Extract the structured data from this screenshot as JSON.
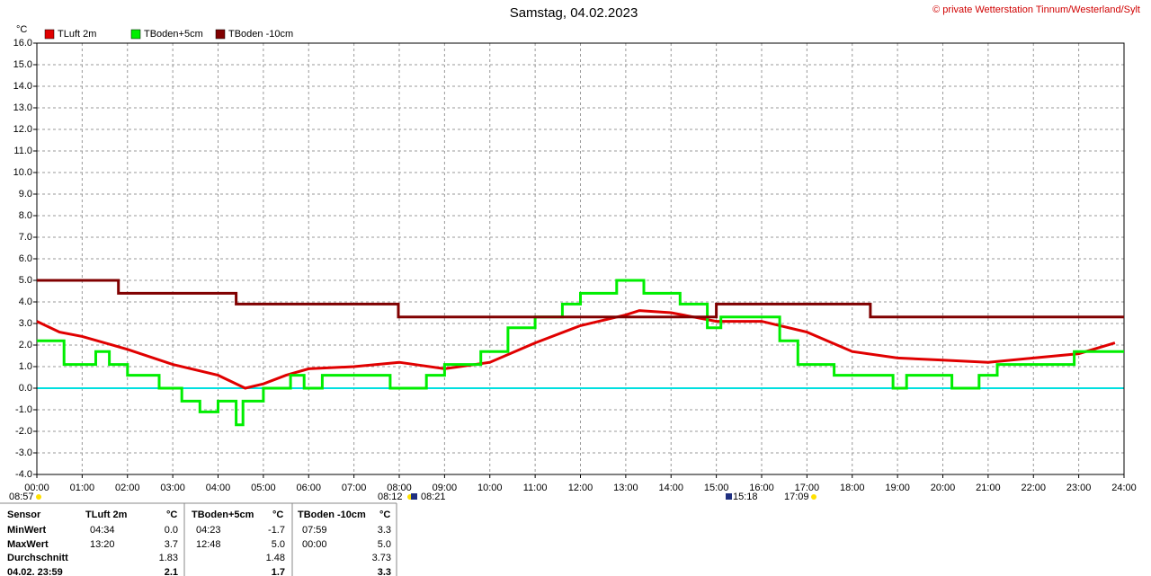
{
  "chart_data": {
    "type": "line",
    "title": "Samstag, 04.02.2023",
    "copyright": "© private Wetterstation Tinnum/Westerland/Sylt",
    "y_label": "°C",
    "xlim": [
      0,
      24
    ],
    "ylim": [
      -4,
      16
    ],
    "grid": true,
    "zero_line_color": "#00e0e0",
    "xticks": [
      {
        "value": 0,
        "label": "00:00"
      },
      {
        "value": 1,
        "label": "01:00"
      },
      {
        "value": 2,
        "label": "02:00"
      },
      {
        "value": 3,
        "label": "03:00"
      },
      {
        "value": 4,
        "label": "04:00"
      },
      {
        "value": 5,
        "label": "05:00"
      },
      {
        "value": 6,
        "label": "06:00"
      },
      {
        "value": 7,
        "label": "07:00"
      },
      {
        "value": 8,
        "label": "08:00"
      },
      {
        "value": 9,
        "label": "09:00"
      },
      {
        "value": 10,
        "label": "10:00"
      },
      {
        "value": 11,
        "label": "11:00"
      },
      {
        "value": 12,
        "label": "12:00"
      },
      {
        "value": 13,
        "label": "13:00"
      },
      {
        "value": 14,
        "label": "14:00"
      },
      {
        "value": 15,
        "label": "15:00"
      },
      {
        "value": 16,
        "label": "16:00"
      },
      {
        "value": 17,
        "label": "17:00"
      },
      {
        "value": 18,
        "label": "18:00"
      },
      {
        "value": 19,
        "label": "19:00"
      },
      {
        "value": 20,
        "label": "20:00"
      },
      {
        "value": 21,
        "label": "21:00"
      },
      {
        "value": 22,
        "label": "22:00"
      },
      {
        "value": 23,
        "label": "23:00"
      },
      {
        "value": 24,
        "label": "24:00"
      }
    ],
    "yticks": [
      {
        "value": -4,
        "label": "-4.0"
      },
      {
        "value": -3,
        "label": "-3.0"
      },
      {
        "value": -2,
        "label": "-2.0"
      },
      {
        "value": -1,
        "label": "-1.0"
      },
      {
        "value": 0,
        "label": "0.0"
      },
      {
        "value": 1,
        "label": "1.0"
      },
      {
        "value": 2,
        "label": "2.0"
      },
      {
        "value": 3,
        "label": "3.0"
      },
      {
        "value": 4,
        "label": "4.0"
      },
      {
        "value": 5,
        "label": "5.0"
      },
      {
        "value": 6,
        "label": "6.0"
      },
      {
        "value": 7,
        "label": "7.0"
      },
      {
        "value": 8,
        "label": "8.0"
      },
      {
        "value": 9,
        "label": "9.0"
      },
      {
        "value": 10,
        "label": "10.0"
      },
      {
        "value": 11,
        "label": "11.0"
      },
      {
        "value": 12,
        "label": "12.0"
      },
      {
        "value": 13,
        "label": "13.0"
      },
      {
        "value": 14,
        "label": "14.0"
      },
      {
        "value": 15,
        "label": "15.0"
      },
      {
        "value": 16,
        "label": "16.0"
      }
    ],
    "series": [
      {
        "name": "TLuft 2m",
        "color": "#e00000",
        "x": [
          0,
          0.5,
          1,
          2,
          3,
          4,
          4.6,
          5,
          5.5,
          6,
          7,
          8,
          9,
          10,
          11,
          12,
          13,
          13.3,
          14,
          15,
          16,
          17,
          18,
          19,
          20,
          21,
          22,
          23,
          23.8
        ],
        "values": [
          3.1,
          2.6,
          2.4,
          1.8,
          1.1,
          0.6,
          0.0,
          0.2,
          0.6,
          0.9,
          1.0,
          1.2,
          0.9,
          1.2,
          2.1,
          2.9,
          3.4,
          3.6,
          3.5,
          3.1,
          3.1,
          2.6,
          1.7,
          1.4,
          1.3,
          1.2,
          1.4,
          1.6,
          2.1
        ]
      },
      {
        "name": "TBoden+5cm",
        "color": "#00ee00",
        "x": [
          0,
          0.6,
          0.6,
          1.3,
          1.3,
          1.6,
          1.6,
          2.0,
          2.0,
          2.7,
          2.7,
          3.2,
          3.2,
          3.6,
          3.6,
          4.0,
          4.0,
          4.4,
          4.4,
          4.55,
          4.55,
          5.0,
          5.0,
          5.6,
          5.6,
          5.9,
          5.9,
          6.3,
          6.3,
          7.8,
          7.8,
          8.6,
          8.6,
          9.0,
          9.0,
          9.8,
          9.8,
          10.4,
          10.4,
          11.0,
          11.0,
          11.6,
          11.6,
          12.0,
          12.0,
          12.8,
          12.8,
          13.4,
          13.4,
          14.2,
          14.2,
          14.8,
          14.8,
          15.1,
          15.1,
          16.4,
          16.4,
          16.8,
          16.8,
          17.6,
          17.6,
          18.9,
          18.9,
          19.2,
          19.2,
          20.2,
          20.2,
          20.8,
          20.8,
          21.2,
          21.2,
          22.9,
          22.9,
          24
        ],
        "values": [
          2.2,
          2.2,
          1.1,
          1.1,
          1.7,
          1.7,
          1.1,
          1.1,
          0.6,
          0.6,
          0,
          0,
          -0.6,
          -0.6,
          -1.1,
          -1.1,
          -0.6,
          -0.6,
          -1.7,
          -1.7,
          -0.6,
          -0.6,
          0,
          0,
          0.6,
          0.6,
          0,
          0,
          0.6,
          0.6,
          0,
          0,
          0.6,
          0.6,
          1.1,
          1.1,
          1.7,
          1.7,
          2.8,
          2.8,
          3.3,
          3.3,
          3.9,
          3.9,
          4.4,
          4.4,
          5,
          5,
          4.4,
          4.4,
          3.9,
          3.9,
          2.8,
          2.8,
          3.3,
          3.3,
          2.2,
          2.2,
          1.1,
          1.1,
          0.6,
          0.6,
          0,
          0,
          0.6,
          0.6,
          0,
          0,
          0.6,
          0.6,
          1.1,
          1.1,
          1.7,
          1.7
        ]
      },
      {
        "name": "TBoden -10cm",
        "color": "#800000",
        "x": [
          0,
          1.8,
          1.8,
          4.4,
          4.4,
          7.98,
          7.98,
          15.0,
          15.0,
          18.4,
          18.4,
          24
        ],
        "values": [
          5,
          5,
          4.4,
          4.4,
          3.9,
          3.9,
          3.3,
          3.3,
          3.9,
          3.9,
          3.3,
          3.3
        ]
      }
    ],
    "sun_events": [
      "08:57",
      "08:12",
      "08:21",
      "15:18",
      "17:09"
    ]
  },
  "table": {
    "rows": [
      [
        "Sensor",
        "TLuft 2m",
        "°C",
        "TBoden+5cm",
        "°C",
        "TBoden -10cm",
        "°C"
      ],
      [
        "MinWert",
        "04:34",
        "0.0",
        "04:23",
        "-1.7",
        "07:59",
        "3.3"
      ],
      [
        "MaxWert",
        "13:20",
        "3.7",
        "12:48",
        "5.0",
        "00:00",
        "5.0"
      ],
      [
        "Durchschnitt",
        null,
        "1.83",
        null,
        "1.48",
        null,
        "3.73"
      ],
      [
        "04.02. 23:59",
        null,
        "2.1",
        null,
        "1.7",
        null,
        "3.3"
      ]
    ]
  }
}
